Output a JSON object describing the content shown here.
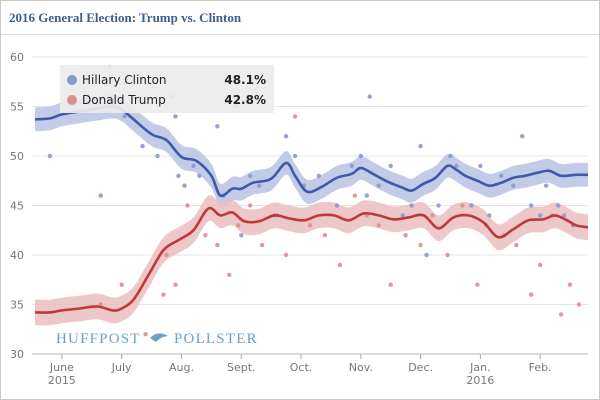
{
  "header": {
    "title": "2016 General Election: Trump vs. Clinton"
  },
  "watermark": {
    "left_word": "HUFFPOST",
    "right_word": "POLLSTER",
    "color": "#6f9fc4"
  },
  "chart_data": {
    "type": "line",
    "title": "2016 General Election: Trump vs. Clinton",
    "xlabel": "",
    "ylabel": "",
    "ylim": [
      30,
      60
    ],
    "yticks": [
      30,
      35,
      40,
      45,
      50,
      55,
      60
    ],
    "grid": true,
    "legend_position": "top-left",
    "x_unit": "months since June 1, 2015",
    "xlim": [
      -0.5,
      8.8
    ],
    "x_ticks": [
      {
        "label": "June",
        "sublabel": "2015",
        "x": 0
      },
      {
        "label": "July",
        "sublabel": "",
        "x": 1
      },
      {
        "label": "Aug.",
        "sublabel": "",
        "x": 2
      },
      {
        "label": "Sept.",
        "sublabel": "",
        "x": 3
      },
      {
        "label": "Oct.",
        "sublabel": "",
        "x": 4
      },
      {
        "label": "Nov.",
        "sublabel": "",
        "x": 5
      },
      {
        "label": "Dec.",
        "sublabel": "",
        "x": 6
      },
      {
        "label": "Jan.",
        "sublabel": "2016",
        "x": 7
      },
      {
        "label": "Feb.",
        "sublabel": "",
        "x": 8
      }
    ],
    "series": [
      {
        "name": "Hillary Clinton",
        "current": "48.1%",
        "color": "#3e5aa8",
        "band_color": "#b9c3e3",
        "dot_color": "#8a98cd",
        "x": [
          -0.45,
          -0.2,
          0.0,
          0.3,
          0.6,
          0.85,
          1.0,
          1.2,
          1.5,
          1.75,
          2.0,
          2.25,
          2.5,
          2.65,
          2.85,
          3.0,
          3.2,
          3.5,
          3.75,
          3.9,
          4.1,
          4.35,
          4.6,
          4.85,
          5.0,
          5.2,
          5.45,
          5.7,
          5.85,
          6.05,
          6.25,
          6.45,
          6.6,
          6.75,
          6.95,
          7.15,
          7.35,
          7.55,
          7.75,
          7.95,
          8.15,
          8.35,
          8.6,
          8.8
        ],
        "values": [
          53.7,
          53.8,
          54.2,
          54.5,
          54.8,
          55.0,
          54.7,
          53.7,
          52.2,
          51.6,
          49.9,
          49.5,
          48.0,
          46.0,
          46.7,
          46.7,
          47.3,
          47.7,
          49.3,
          48.0,
          46.4,
          46.9,
          47.8,
          48.2,
          48.8,
          48.2,
          47.4,
          46.8,
          46.5,
          47.2,
          47.8,
          49.0,
          48.6,
          48.0,
          47.5,
          47.0,
          47.3,
          47.8,
          48.0,
          48.3,
          48.5,
          48.0,
          48.1,
          48.1
        ],
        "band_halfwidth": 1.2,
        "polls": [
          [
            -0.2,
            50
          ],
          [
            0.65,
            46
          ],
          [
            0.8,
            59
          ],
          [
            1.05,
            54
          ],
          [
            1.35,
            51
          ],
          [
            1.6,
            50
          ],
          [
            1.85,
            56
          ],
          [
            1.9,
            54
          ],
          [
            1.95,
            48
          ],
          [
            2.05,
            47
          ],
          [
            2.2,
            49
          ],
          [
            2.3,
            48
          ],
          [
            2.6,
            53
          ],
          [
            2.7,
            46
          ],
          [
            2.9,
            55
          ],
          [
            3.0,
            42
          ],
          [
            3.15,
            48
          ],
          [
            3.3,
            47
          ],
          [
            3.6,
            44
          ],
          [
            3.75,
            52
          ],
          [
            3.9,
            50
          ],
          [
            4.05,
            47
          ],
          [
            4.3,
            48
          ],
          [
            4.6,
            45
          ],
          [
            4.85,
            49
          ],
          [
            5.0,
            50
          ],
          [
            5.1,
            46
          ],
          [
            5.15,
            56
          ],
          [
            5.3,
            47
          ],
          [
            5.5,
            49
          ],
          [
            5.7,
            44
          ],
          [
            5.85,
            45
          ],
          [
            6.0,
            51
          ],
          [
            6.1,
            40
          ],
          [
            6.3,
            45
          ],
          [
            6.5,
            50
          ],
          [
            6.6,
            49
          ],
          [
            6.85,
            45
          ],
          [
            7.0,
            49
          ],
          [
            7.15,
            44
          ],
          [
            7.35,
            48
          ],
          [
            7.55,
            47
          ],
          [
            7.7,
            52
          ],
          [
            7.85,
            45
          ],
          [
            8.0,
            44
          ],
          [
            8.1,
            47
          ],
          [
            8.3,
            45
          ],
          [
            8.4,
            44
          ],
          [
            8.55,
            43
          ]
        ]
      },
      {
        "name": "Donald Trump",
        "current": "42.8%",
        "color": "#c0393a",
        "band_color": "#ebbdbe",
        "dot_color": "#dc8e8e",
        "x": [
          -0.45,
          -0.2,
          0.0,
          0.3,
          0.6,
          0.85,
          1.0,
          1.2,
          1.45,
          1.7,
          1.95,
          2.2,
          2.45,
          2.65,
          2.85,
          3.05,
          3.3,
          3.55,
          3.8,
          4.05,
          4.3,
          4.55,
          4.8,
          5.05,
          5.3,
          5.55,
          5.8,
          6.05,
          6.3,
          6.55,
          6.8,
          7.05,
          7.3,
          7.55,
          7.8,
          8.05,
          8.25,
          8.45,
          8.6,
          8.8
        ],
        "values": [
          34.2,
          34.2,
          34.4,
          34.6,
          34.8,
          34.4,
          34.6,
          35.5,
          38.0,
          40.5,
          41.5,
          42.5,
          44.7,
          44.0,
          44.3,
          43.4,
          43.4,
          44.0,
          43.7,
          43.5,
          44.0,
          44.0,
          43.5,
          44.2,
          44.0,
          43.6,
          43.8,
          44.0,
          42.7,
          43.8,
          44.0,
          43.3,
          41.8,
          42.6,
          43.5,
          43.6,
          44.0,
          43.5,
          43.0,
          42.8
        ],
        "band_halfwidth": 1.3,
        "polls": [
          [
            0.65,
            35
          ],
          [
            1.0,
            37
          ],
          [
            1.4,
            32
          ],
          [
            1.7,
            36
          ],
          [
            1.75,
            40
          ],
          [
            1.9,
            37
          ],
          [
            2.1,
            45
          ],
          [
            2.4,
            42
          ],
          [
            2.6,
            41
          ],
          [
            2.8,
            38
          ],
          [
            2.95,
            43
          ],
          [
            3.15,
            45
          ],
          [
            3.35,
            41
          ],
          [
            3.55,
            44
          ],
          [
            3.75,
            40
          ],
          [
            3.9,
            54
          ],
          [
            4.15,
            43
          ],
          [
            4.4,
            42
          ],
          [
            4.65,
            39
          ],
          [
            4.9,
            46
          ],
          [
            5.1,
            44
          ],
          [
            5.3,
            43
          ],
          [
            5.5,
            37
          ],
          [
            5.75,
            42
          ],
          [
            6.0,
            41
          ],
          [
            6.2,
            44
          ],
          [
            6.45,
            40
          ],
          [
            6.7,
            45
          ],
          [
            6.95,
            37
          ],
          [
            7.1,
            43
          ],
          [
            7.4,
            42
          ],
          [
            7.6,
            41
          ],
          [
            7.85,
            36
          ],
          [
            8.0,
            39
          ],
          [
            8.2,
            44
          ],
          [
            8.35,
            34
          ],
          [
            8.5,
            37
          ],
          [
            8.65,
            35
          ]
        ]
      }
    ]
  }
}
